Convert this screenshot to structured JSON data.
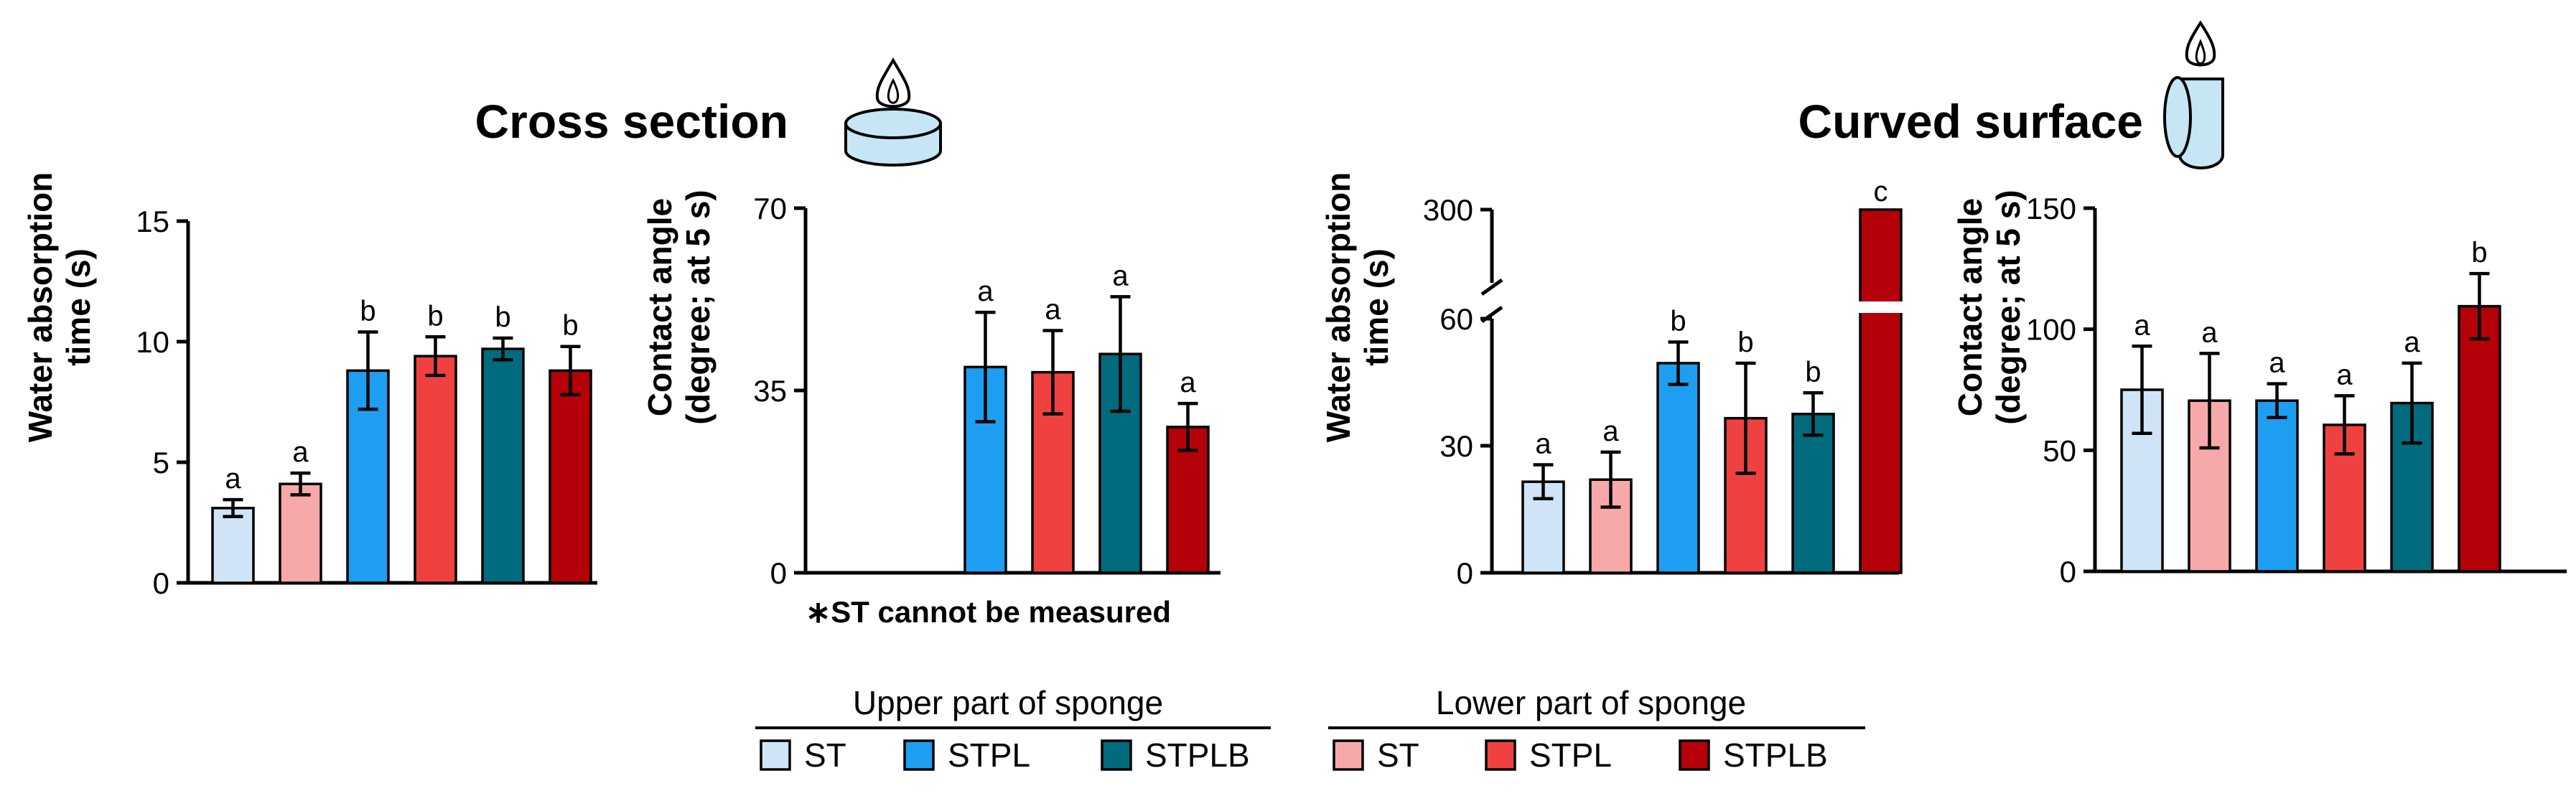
{
  "titles": {
    "cross_section": "Cross section",
    "curved_surface": "Curved surface"
  },
  "colors": {
    "ST_upper": "#cfe5f7",
    "STPL_upper": "#1e9ef0",
    "STPLB_upper": "#006b7d",
    "ST_lower": "#f7a9a9",
    "STPL_lower": "#f04141",
    "STPLB_lower": "#b40008"
  },
  "note": "∗ST cannot be measured",
  "legend": {
    "upper_title": "Upper part of sponge",
    "lower_title": "Lower part of sponge",
    "upper_items": [
      {
        "label": "ST",
        "color_key": "ST_upper"
      },
      {
        "label": "STPL",
        "color_key": "STPL_upper"
      },
      {
        "label": "STPLB",
        "color_key": "STPLB_upper"
      }
    ],
    "lower_items": [
      {
        "label": "ST",
        "color_key": "ST_lower"
      },
      {
        "label": "STPL",
        "color_key": "STPL_lower"
      },
      {
        "label": "STPLB",
        "color_key": "STPLB_lower"
      }
    ]
  },
  "chart_data": [
    {
      "id": "cs-water",
      "type": "bar",
      "group": "Cross section",
      "ylabel": [
        "Water absorption",
        "time (s)"
      ],
      "ylim": [
        0,
        15
      ],
      "yticks": [
        0,
        5,
        10,
        15
      ],
      "categories": [
        "ST (upper)",
        "ST (lower)",
        "STPL (upper)",
        "STPL (lower)",
        "STPLB (upper)",
        "STPLB (lower)"
      ],
      "color_keys": [
        "ST_upper",
        "ST_lower",
        "STPL_upper",
        "STPL_lower",
        "STPLB_upper",
        "STPLB_lower"
      ],
      "values": [
        3.1,
        4.1,
        8.8,
        9.4,
        9.7,
        8.8
      ],
      "errors": [
        0.35,
        0.45,
        1.6,
        0.8,
        0.45,
        1.0
      ],
      "letters": [
        "a",
        "a",
        "b",
        "b",
        "b",
        "b"
      ]
    },
    {
      "id": "cs-angle",
      "type": "bar",
      "group": "Cross section",
      "ylabel": [
        "Contact angle",
        "(degree; at 5 s)"
      ],
      "ylim": [
        0,
        70
      ],
      "yticks": [
        0,
        35,
        70
      ],
      "categories": [
        "ST (upper)",
        "ST (lower)",
        "STPL (upper)",
        "STPL (lower)",
        "STPLB (upper)",
        "STPLB (lower)"
      ],
      "color_keys": [
        "ST_upper",
        "ST_lower",
        "STPL_upper",
        "STPL_lower",
        "STPLB_upper",
        "STPLB_lower"
      ],
      "values": [
        null,
        null,
        39.5,
        38.5,
        42,
        28
      ],
      "errors": [
        null,
        null,
        10.5,
        8,
        11,
        4.5
      ],
      "letters": [
        "",
        "",
        "a",
        "a",
        "a",
        "a"
      ]
    },
    {
      "id": "cv-water",
      "type": "bar",
      "group": "Curved surface",
      "ylabel": [
        "Water absorption",
        "time (s)"
      ],
      "ylim": [
        0,
        300
      ],
      "axis_break": [
        60,
        300
      ],
      "yticks": [
        0,
        30,
        60,
        300
      ],
      "categories": [
        "ST (upper)",
        "ST (lower)",
        "STPL (upper)",
        "STPL (lower)",
        "STPLB (upper)",
        "STPLB (lower)"
      ],
      "color_keys": [
        "ST_upper",
        "ST_lower",
        "STPL_upper",
        "STPL_lower",
        "STPLB_upper",
        "STPLB_lower"
      ],
      "values": [
        21.5,
        22,
        49.5,
        36.5,
        37.5,
        300
      ],
      "errors": [
        4,
        6.5,
        5,
        13,
        5,
        0
      ],
      "letters": [
        "a",
        "a",
        "b",
        "b",
        "b",
        "c"
      ]
    },
    {
      "id": "cv-angle",
      "type": "bar",
      "group": "Curved surface",
      "ylabel": [
        "Contact angle",
        "(degree; at 5 s)"
      ],
      "ylim": [
        0,
        150
      ],
      "yticks": [
        0,
        50,
        100,
        150
      ],
      "categories": [
        "ST (upper)",
        "ST (lower)",
        "STPL (upper)",
        "STPL (lower)",
        "STPLB (upper)",
        "STPLB (lower)"
      ],
      "color_keys": [
        "ST_upper",
        "ST_lower",
        "STPL_upper",
        "STPL_lower",
        "STPLB_upper",
        "STPLB_lower"
      ],
      "values": [
        75,
        70.5,
        70.5,
        60.5,
        69.5,
        109.5
      ],
      "errors": [
        18,
        19.5,
        7,
        12,
        16.5,
        13.5
      ],
      "letters": [
        "a",
        "a",
        "a",
        "a",
        "a",
        "b"
      ]
    }
  ]
}
